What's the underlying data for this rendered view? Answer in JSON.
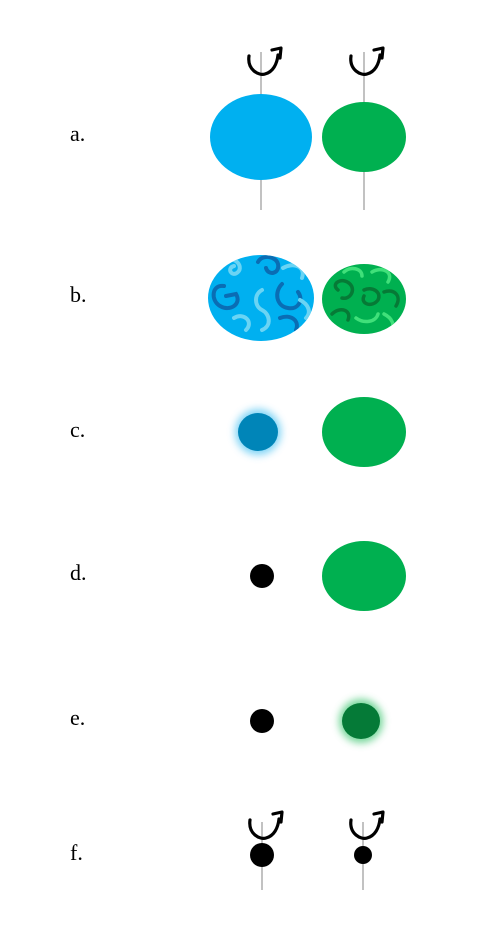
{
  "rows": [
    {
      "label": "a.",
      "left": "large blue sphere, rotating on axis",
      "right": "large green sphere, rotating on axis"
    },
    {
      "label": "b.",
      "left": "large blue sphere with swirling texture",
      "right": "large green sphere with swirling texture"
    },
    {
      "label": "c.",
      "left": "small blue sphere with glowing halo",
      "right": "large green sphere"
    },
    {
      "label": "d.",
      "left": "small black dot",
      "right": "large green sphere"
    },
    {
      "label": "e.",
      "left": "small black dot",
      "right": "small dark green sphere with glowing halo"
    },
    {
      "label": "f.",
      "left": "black dot rotating on axis",
      "right": "smaller black dot rotating on axis"
    }
  ],
  "colors": {
    "blue": "#00b0f0",
    "blue_dark": "#0085b8",
    "blue_swirl_dark": "#0a6db4",
    "blue_swirl_light": "#6ad4f4",
    "green": "#00b050",
    "green_dark": "#057a37",
    "green_swirl_dark": "#067a36",
    "green_swirl_light": "#40e07a",
    "axis": "#9a9a9a",
    "dot": "#000000"
  },
  "icons": [
    "rotation-arrow-icon"
  ]
}
